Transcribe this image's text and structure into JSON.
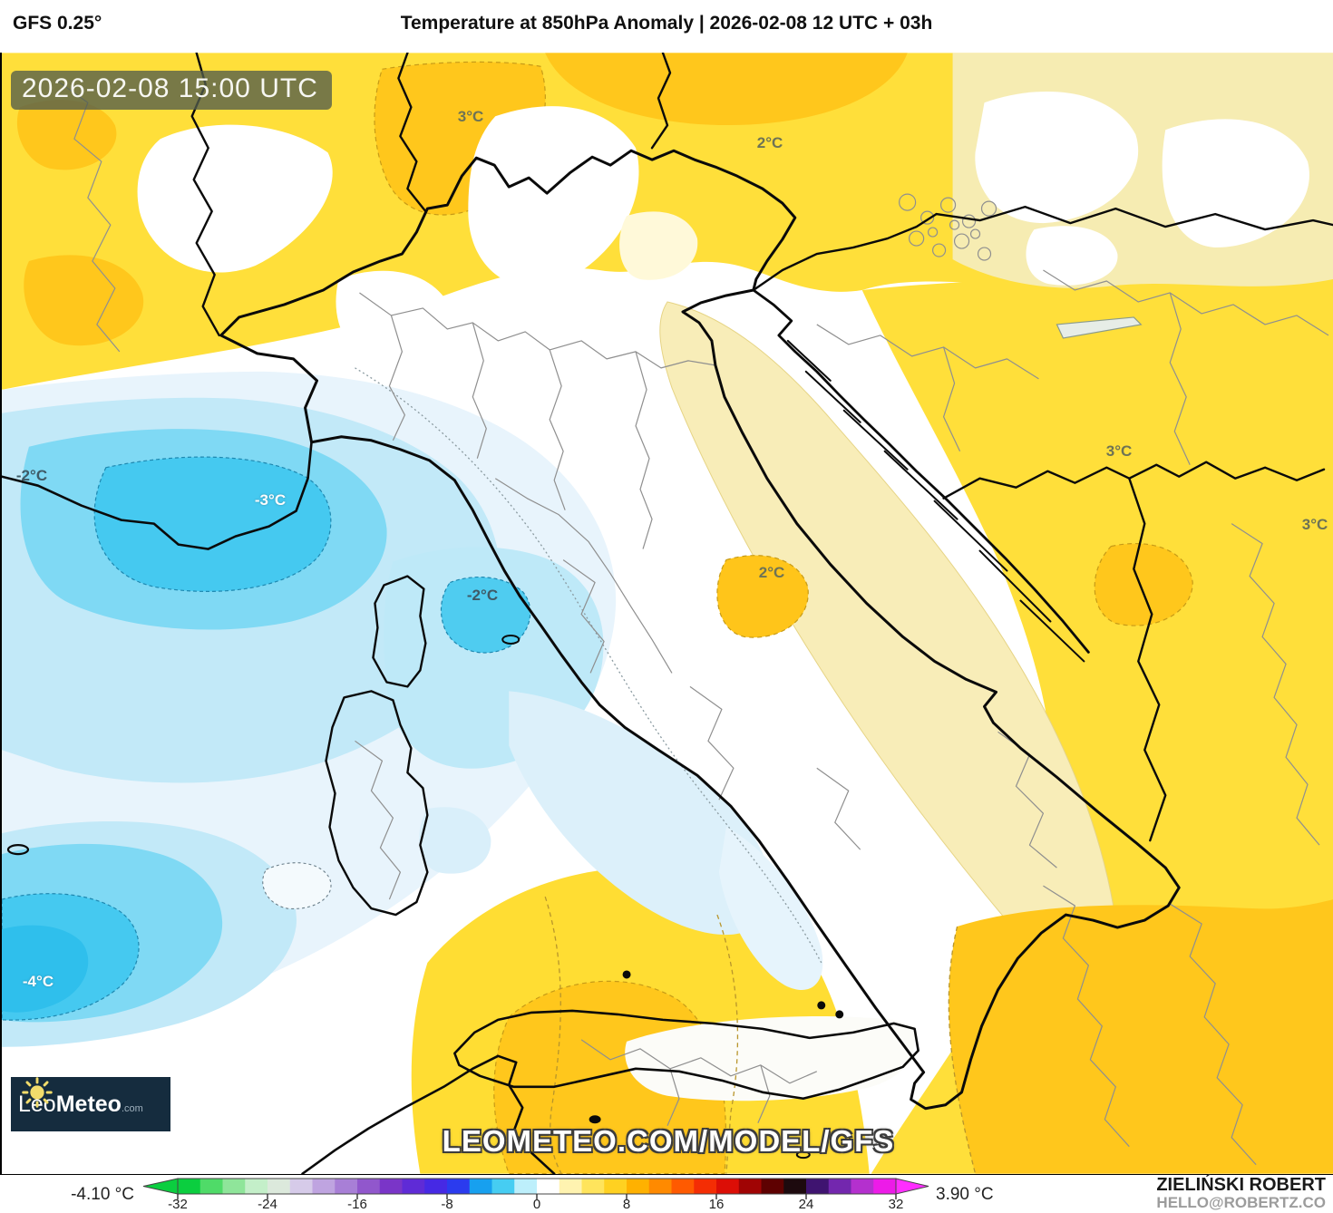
{
  "header": {
    "model_label": "GFS 0.25°",
    "title": "Temperature at 850hPa Anomaly | 2026-02-08 12 UTC + 03h"
  },
  "map": {
    "timestamp_badge": "2026-02-08 15:00 UTC",
    "watermark": "LEOMETEO.COM/MODEL/GFS",
    "logo": {
      "prefix": "Leo",
      "suffix": "Meteo",
      "tld": ".com"
    },
    "labels": [
      {
        "text": "3°C"
      },
      {
        "text": "2°C"
      },
      {
        "text": "-2°C"
      },
      {
        "text": "-3°C"
      },
      {
        "text": "-2°C"
      },
      {
        "text": "2°C"
      },
      {
        "text": "3°C"
      },
      {
        "text": "3°C"
      },
      {
        "text": "-4°C"
      }
    ]
  },
  "colorbar": {
    "min_label": "-4.10 °C",
    "max_label": "3.90 °C",
    "ticks": [
      "-32",
      "-24",
      "-16",
      "-8",
      "0",
      "8",
      "16",
      "24",
      "32"
    ]
  },
  "credit": {
    "author": "ZIELIŃSKI ROBERT",
    "contact": "HELLO@ROBERTZ.CO"
  },
  "colors": {
    "logo_bg": "#152C3E",
    "logo_sun": "#F2DC6B",
    "badge_bg": "#525C4C",
    "tip_left": "#0BCE3F",
    "tip_right": "#FF2EFF"
  },
  "chart_data": {
    "type": "heatmap",
    "title": "Temperature at 850hPa Anomaly",
    "model": "GFS 0.25°",
    "run": "2026-02-08 12 UTC",
    "forecast_step": "+ 03h",
    "valid_time": "2026-02-08 15:00 UTC",
    "unit": "°C",
    "field_min": -4.1,
    "field_max": 3.9,
    "scale_ticks": [
      -32,
      -24,
      -16,
      -8,
      0,
      8,
      16,
      24,
      32
    ],
    "scale_step": 2,
    "scale_colors": [
      "#0BCE3F",
      "#4FDB68",
      "#8FE59A",
      "#C4EFC9",
      "#DCE9DC",
      "#D6CBE9",
      "#BFA4E0",
      "#A87FD6",
      "#9157CC",
      "#7A35C8",
      "#5F2BD6",
      "#4629E4",
      "#2B3BEE",
      "#17A0EF",
      "#46CDF2",
      "#BDEFFB",
      "#FFFFFF",
      "#FFF3B0",
      "#FFE45C",
      "#FFD121",
      "#FFB100",
      "#FF8A00",
      "#FF5A00",
      "#F42D04",
      "#DC0E06",
      "#A00404",
      "#5E0101",
      "#1D0A0E",
      "#3F1470",
      "#7327AE",
      "#B430CE",
      "#ED1BE8"
    ],
    "labeled_anomaly_values": [
      3,
      2,
      -2,
      -3,
      -2,
      2,
      3,
      3,
      -4
    ]
  }
}
